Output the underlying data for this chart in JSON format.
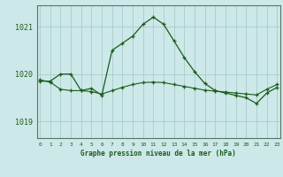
{
  "title": "Graphe pression niveau de la mer (hPa)",
  "bg_color": "#cce8e8",
  "grid_color": "#aacccc",
  "line_color": "#1a5c1a",
  "x_ticks": [
    0,
    1,
    2,
    3,
    4,
    5,
    6,
    7,
    8,
    9,
    10,
    11,
    12,
    13,
    14,
    15,
    16,
    17,
    18,
    19,
    20,
    21,
    22,
    23
  ],
  "y_ticks": [
    1019,
    1020,
    1021
  ],
  "ylim": [
    1018.65,
    1021.45
  ],
  "xlim": [
    -0.3,
    23.3
  ],
  "series1_x": [
    0,
    1,
    2,
    3,
    4,
    5,
    6,
    7,
    8,
    9,
    10,
    11,
    12,
    13,
    14,
    15,
    16,
    17,
    18,
    19,
    20,
    21,
    22,
    23
  ],
  "series1_y": [
    1019.85,
    1019.85,
    1020.0,
    1020.0,
    1019.65,
    1019.7,
    1019.55,
    1020.5,
    1020.65,
    1020.8,
    1021.05,
    1021.2,
    1021.05,
    1020.7,
    1020.35,
    1020.05,
    1019.8,
    1019.65,
    1019.6,
    1019.55,
    1019.5,
    1019.38,
    1019.6,
    1019.72
  ],
  "series2_x": [
    0,
    1,
    2,
    3,
    4,
    5,
    6,
    7,
    8,
    9,
    10,
    11,
    12,
    13,
    14,
    15,
    16,
    17,
    18,
    19,
    20,
    21,
    22,
    23
  ],
  "series2_y": [
    1019.88,
    1019.83,
    1019.68,
    1019.65,
    1019.65,
    1019.63,
    1019.58,
    1019.65,
    1019.72,
    1019.78,
    1019.82,
    1019.83,
    1019.82,
    1019.78,
    1019.74,
    1019.7,
    1019.66,
    1019.64,
    1019.62,
    1019.6,
    1019.58,
    1019.56,
    1019.68,
    1019.78
  ]
}
